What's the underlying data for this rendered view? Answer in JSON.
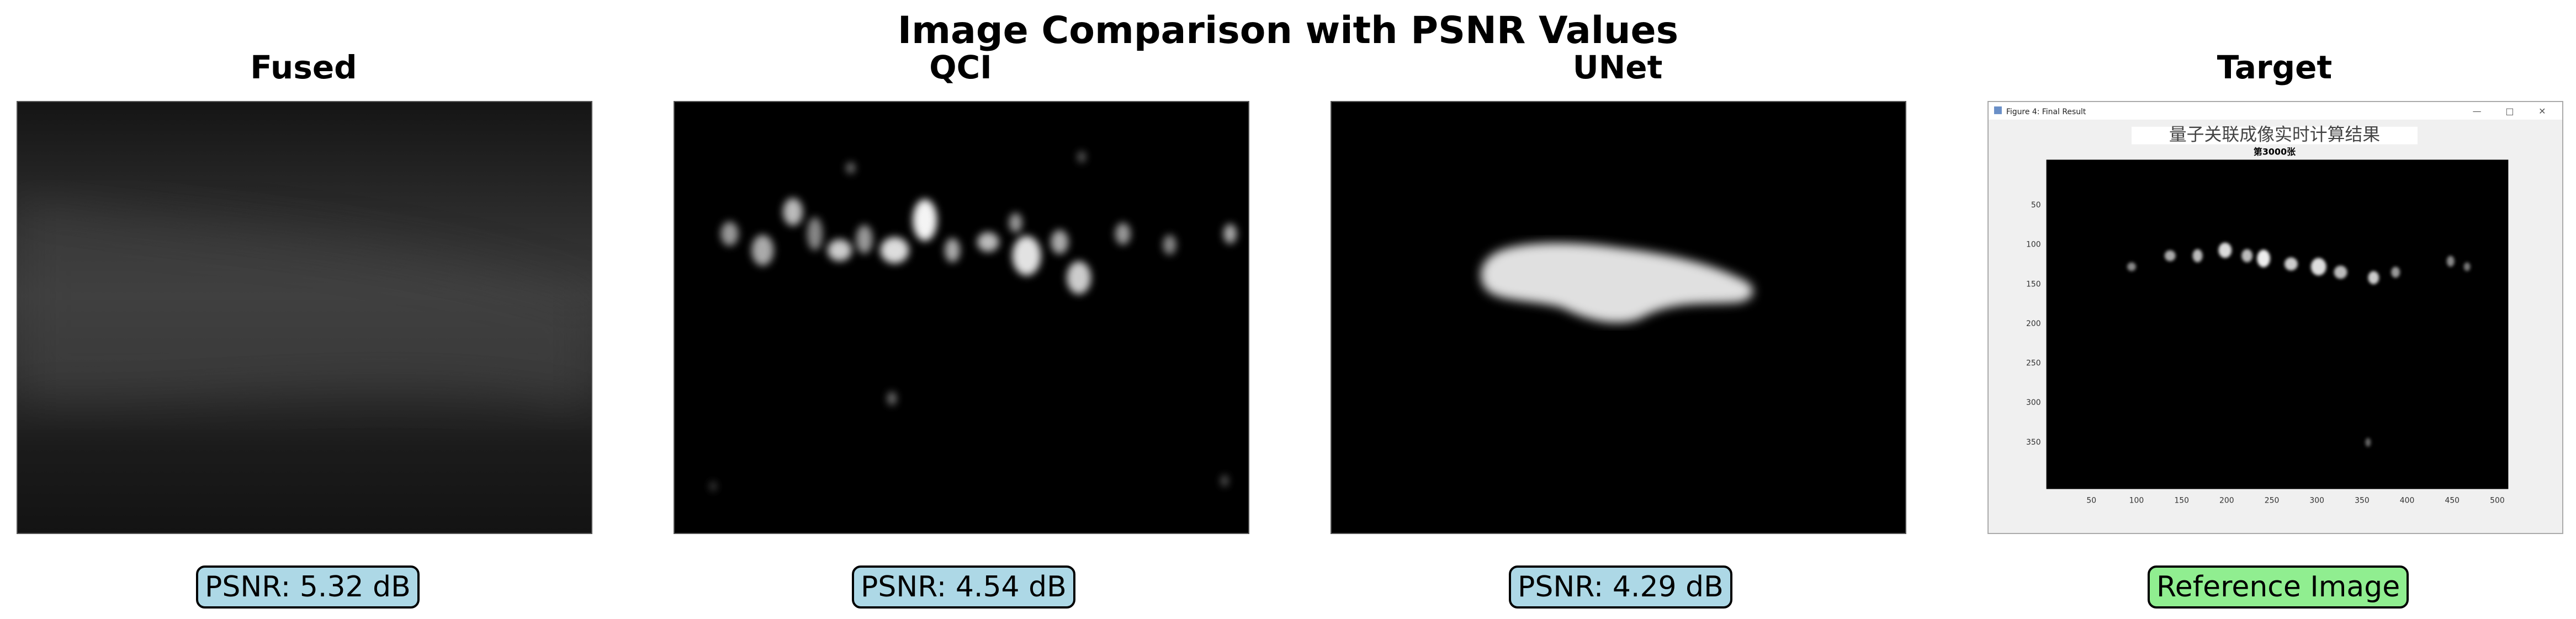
{
  "title": "Image Comparison with PSNR Values",
  "panels": [
    {
      "title": "Fused",
      "caption": "PSNR: 5.32 dB",
      "caption_color": "#add8e6"
    },
    {
      "title": "QCI",
      "caption": "PSNR: 4.54 dB",
      "caption_color": "#add8e6"
    },
    {
      "title": "UNet",
      "caption": "PSNR: 4.29 dB",
      "caption_color": "#add8e6"
    },
    {
      "title": "Target",
      "caption": "Reference Image",
      "caption_color": "#90ee90"
    }
  ],
  "target_image": {
    "window_title": "Figure 4: Final Result",
    "chinese_title": "量子关联成像实时计算结果",
    "subtitle": "第3000张",
    "y_ticks": [
      "50",
      "100",
      "150",
      "200",
      "250",
      "300",
      "350"
    ],
    "x_ticks": [
      "50",
      "100",
      "150",
      "200",
      "250",
      "300",
      "350",
      "400",
      "450",
      "500"
    ]
  }
}
